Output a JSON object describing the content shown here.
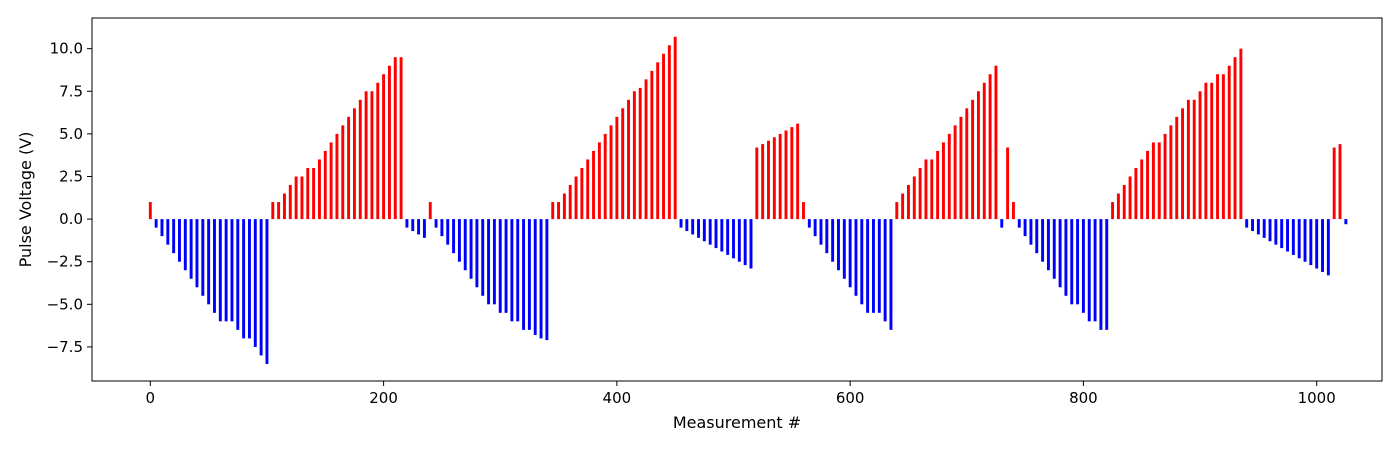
{
  "chart_data": {
    "type": "bar",
    "title": "",
    "xlabel": "Measurement #",
    "ylabel": "Pulse Voltage (V)",
    "xlim": [
      -50,
      1056
    ],
    "ylim": [
      -9.5,
      11.8
    ],
    "xticks": [
      0,
      200,
      400,
      600,
      800,
      1000
    ],
    "xtick_labels": [
      "0",
      "200",
      "400",
      "600",
      "800",
      "1000"
    ],
    "yticks": [
      -7.5,
      -5.0,
      -2.5,
      0.0,
      2.5,
      5.0,
      7.5,
      10.0
    ],
    "ytick_labels": [
      "−7.5",
      "−5.0",
      "−2.5",
      "0.0",
      "2.5",
      "5.0",
      "7.5",
      "10.0"
    ],
    "grid": false,
    "legend": "none",
    "colors": {
      "positive": "#ff0000",
      "negative": "#0000ff"
    },
    "x": [
      0,
      5,
      10,
      15,
      20,
      25,
      30,
      35,
      40,
      45,
      50,
      55,
      60,
      65,
      70,
      75,
      80,
      85,
      90,
      95,
      100,
      105,
      110,
      115,
      120,
      125,
      130,
      135,
      140,
      145,
      150,
      155,
      160,
      165,
      170,
      175,
      180,
      185,
      190,
      195,
      200,
      205,
      210,
      215,
      220,
      225,
      230,
      235,
      240,
      245,
      250,
      255,
      260,
      265,
      270,
      275,
      280,
      285,
      290,
      295,
      300,
      305,
      310,
      315,
      320,
      325,
      330,
      335,
      340,
      345,
      350,
      355,
      360,
      365,
      370,
      375,
      380,
      385,
      390,
      395,
      400,
      405,
      410,
      415,
      420,
      425,
      430,
      435,
      440,
      445,
      450,
      455,
      460,
      465,
      470,
      475,
      480,
      485,
      490,
      495,
      500,
      505,
      510,
      515,
      520,
      525,
      530,
      535,
      540,
      545,
      550,
      555,
      560,
      565,
      570,
      575,
      580,
      585,
      590,
      595,
      600,
      605,
      610,
      615,
      620,
      625,
      630,
      635,
      640,
      645,
      650,
      655,
      660,
      665,
      670,
      675,
      680,
      685,
      690,
      695,
      700,
      705,
      710,
      715,
      720,
      725,
      730,
      735,
      740,
      745,
      750,
      755,
      760,
      765,
      770,
      775,
      780,
      785,
      790,
      795,
      800,
      805,
      810,
      815,
      820,
      825,
      830,
      835,
      840,
      845,
      850,
      855,
      860,
      865,
      870,
      875,
      880,
      885,
      890,
      895,
      900,
      905,
      910,
      915,
      920,
      925,
      930,
      935,
      940,
      945,
      950,
      955,
      960,
      965,
      970,
      975,
      980,
      985,
      990,
      995,
      1000,
      1005,
      1010,
      1015,
      1020,
      1025
    ],
    "values": [
      1.0,
      -0.5,
      -1.0,
      -1.5,
      -2.0,
      -2.5,
      -3.0,
      -3.5,
      -4.0,
      -4.5,
      -5.0,
      -5.5,
      -6.0,
      -6.0,
      -6.0,
      -6.5,
      -7.0,
      -7.0,
      -7.5,
      -8.0,
      -8.5,
      1.0,
      1.0,
      1.5,
      2.0,
      2.5,
      2.5,
      3.0,
      3.0,
      3.5,
      4.0,
      4.5,
      5.0,
      5.5,
      6.0,
      6.5,
      7.0,
      7.5,
      7.5,
      8.0,
      8.5,
      9.0,
      9.5,
      9.5,
      -0.5,
      -0.7,
      -0.9,
      -1.1,
      1.0,
      -0.5,
      -1.0,
      -1.5,
      -2.0,
      -2.5,
      -3.0,
      -3.5,
      -4.0,
      -4.5,
      -5.0,
      -5.0,
      -5.5,
      -5.5,
      -6.0,
      -6.0,
      -6.5,
      -6.5,
      -6.8,
      -7.0,
      -7.1,
      1.0,
      1.0,
      1.5,
      2.0,
      2.5,
      3.0,
      3.5,
      4.0,
      4.5,
      5.0,
      5.5,
      6.0,
      6.5,
      7.0,
      7.5,
      7.7,
      8.2,
      8.7,
      9.2,
      9.7,
      10.2,
      10.7,
      -0.5,
      -0.7,
      -0.9,
      -1.1,
      -1.3,
      -1.5,
      -1.7,
      -1.9,
      -2.1,
      -2.3,
      -2.5,
      -2.7,
      -2.9,
      4.2,
      4.4,
      4.6,
      4.8,
      5.0,
      5.2,
      5.4,
      5.6,
      1.0,
      -0.5,
      -1.0,
      -1.5,
      -2.0,
      -2.5,
      -3.0,
      -3.5,
      -4.0,
      -4.5,
      -5.0,
      -5.5,
      -5.5,
      -5.5,
      -6.0,
      -6.5,
      1.0,
      1.5,
      2.0,
      2.5,
      3.0,
      3.5,
      3.5,
      4.0,
      4.5,
      5.0,
      5.5,
      6.0,
      6.5,
      7.0,
      7.5,
      8.0,
      8.5,
      9.0,
      -0.5,
      4.2,
      1.0,
      -0.5,
      -1.0,
      -1.5,
      -2.0,
      -2.5,
      -3.0,
      -3.5,
      -4.0,
      -4.5,
      -5.0,
      -5.0,
      -5.5,
      -6.0,
      -6.0,
      -6.5,
      -6.5,
      1.0,
      1.5,
      2.0,
      2.5,
      3.0,
      3.5,
      4.0,
      4.5,
      4.5,
      5.0,
      5.5,
      6.0,
      6.5,
      7.0,
      7.0,
      7.5,
      8.0,
      8.0,
      8.5,
      8.5,
      9.0,
      9.5,
      10.0,
      -0.5,
      -0.7,
      -0.9,
      -1.1,
      -1.3,
      -1.5,
      -1.7,
      -1.9,
      -2.1,
      -2.3,
      -2.5,
      -2.7,
      -2.9,
      -3.1,
      -3.3,
      4.2,
      4.4,
      -0.3
    ]
  }
}
